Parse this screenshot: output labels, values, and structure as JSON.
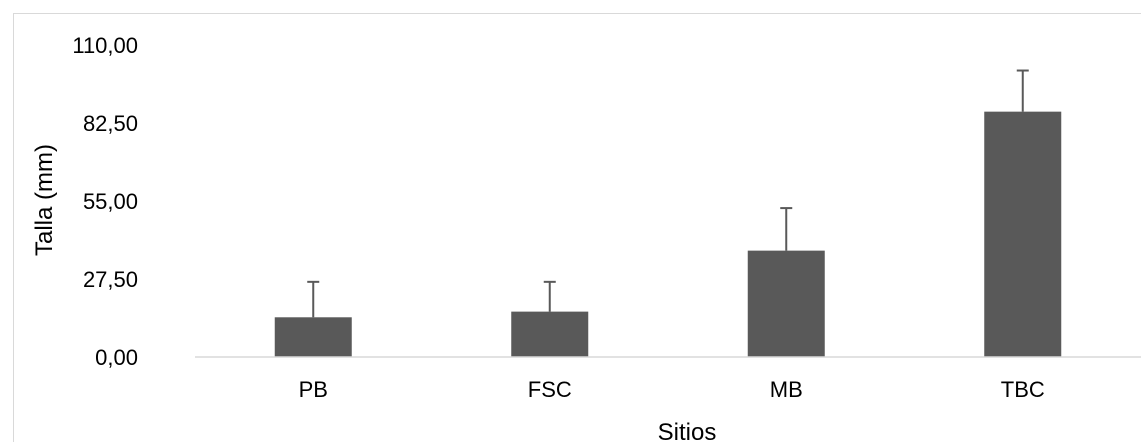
{
  "chart_data": {
    "type": "bar",
    "categories": [
      "PB",
      "FSC",
      "MB",
      "TBC"
    ],
    "values": [
      14.0,
      16.0,
      37.5,
      86.5
    ],
    "error_plus": [
      12.5,
      10.5,
      15.0,
      14.5
    ],
    "xlabel": "Sitios",
    "ylabel": "Talla (mm)",
    "ylim": [
      0,
      110
    ],
    "yticks": [
      "0,00",
      "27,50",
      "55,00",
      "82,50",
      "110,00"
    ],
    "grid": false,
    "legend": "none",
    "bar_color": "#595959"
  }
}
